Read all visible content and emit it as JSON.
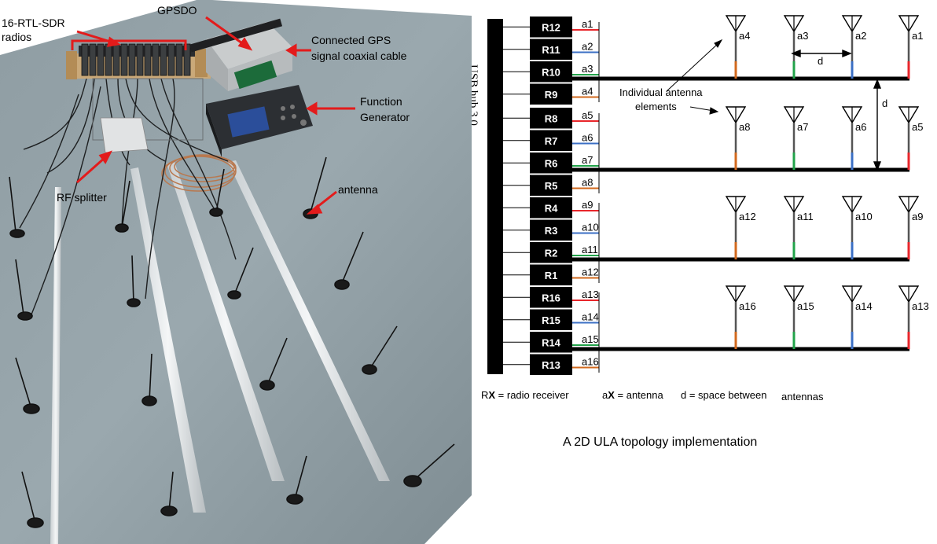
{
  "photo": {
    "callouts": {
      "radios": [
        "16-RTL-SDR",
        "radios"
      ],
      "gpsdo": "GPSDO",
      "gps_cable": [
        "Connected GPS",
        "signal coaxial cable"
      ],
      "function_generator": [
        "Function",
        "Generator"
      ],
      "rf_splitter": "RF splitter",
      "antenna": "antenna"
    }
  },
  "diagram": {
    "usb_hub": "USB hub 3.0",
    "annotation": [
      "Individual antenna",
      "elements"
    ],
    "spacing_label": "d",
    "colors": {
      "red": "#e8262b",
      "blue": "#3b6fc4",
      "green": "#22a34a",
      "orange": "#d2691e"
    },
    "rows": [
      {
        "radios": [
          "R12",
          "R11",
          "R10",
          "R9"
        ],
        "ports": [
          "a1",
          "a2",
          "a3",
          "a4"
        ],
        "antennas": [
          "a4",
          "a3",
          "a2",
          "a1"
        ]
      },
      {
        "radios": [
          "R8",
          "R7",
          "R6",
          "R5"
        ],
        "ports": [
          "a5",
          "a6",
          "a7",
          "a8"
        ],
        "antennas": [
          "a8",
          "a7",
          "a6",
          "a5"
        ]
      },
      {
        "radios": [
          "R4",
          "R3",
          "R2",
          "R1"
        ],
        "ports": [
          "a9",
          "a10",
          "a11",
          "a12"
        ],
        "antennas": [
          "a12",
          "a11",
          "a10",
          "a9"
        ]
      },
      {
        "radios": [
          "R16",
          "R15",
          "R14",
          "R13"
        ],
        "ports": [
          "a13",
          "a14",
          "a15",
          "a16"
        ],
        "antennas": [
          "a16",
          "a15",
          "a14",
          "a13"
        ]
      }
    ],
    "legend": {
      "rx": {
        "prefix": "R",
        "bold": "X",
        "suffix": " = radio receiver"
      },
      "ax": {
        "prefix": "a",
        "bold": "X",
        "suffix": " = antenna"
      },
      "d": "d = space between",
      "d2": "antennas"
    },
    "caption": "A 2D ULA topology implementation"
  }
}
